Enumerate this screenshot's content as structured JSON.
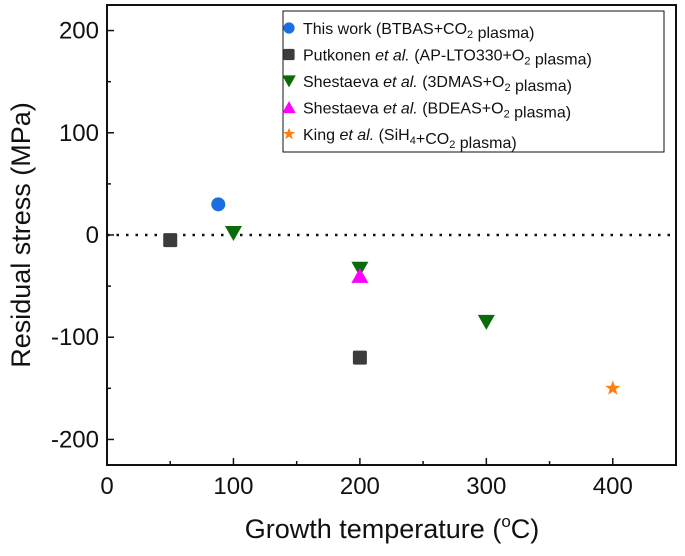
{
  "chart_data": {
    "type": "scatter",
    "xlabel": "Growth temperature (",
    "xlabel_sup": "o",
    "xlabel_tail": "C)",
    "ylabel": "Residual stress (MPa)",
    "xlim": [
      0,
      450
    ],
    "ylim": [
      -225,
      225
    ],
    "xticks": [
      0,
      100,
      200,
      300,
      400
    ],
    "yticks": [
      -200,
      -100,
      0,
      100,
      200
    ],
    "grid": false,
    "reference_line": {
      "y": 0,
      "style": "dotted"
    },
    "legend_position": "top-right",
    "series": [
      {
        "name": "This work (BTBAS+CO2 plasma)",
        "label_parts": [
          [
            "This work (BTBAS+CO",
            ""
          ],
          [
            "2",
            "sub"
          ],
          [
            " plasma)",
            ""
          ]
        ],
        "marker": "circle",
        "color": "#1a6fe0",
        "points": [
          [
            88,
            30
          ]
        ]
      },
      {
        "name": "Putkonen et al. (AP-LTO330+O2 plasma)",
        "label_parts": [
          [
            "Putkonen ",
            ""
          ],
          [
            "et al.",
            "i"
          ],
          [
            " (AP-LTO330+O",
            ""
          ],
          [
            "2",
            "sub"
          ],
          [
            " plasma)",
            ""
          ]
        ],
        "marker": "square",
        "color": "#3c3c3c",
        "points": [
          [
            50,
            -5
          ],
          [
            200,
            -120
          ]
        ]
      },
      {
        "name": "Shestaeva et al. (3DMAS+O2 plasma)",
        "label_parts": [
          [
            "Shestaeva ",
            ""
          ],
          [
            "et al.",
            "i"
          ],
          [
            " (3DMAS+O",
            ""
          ],
          [
            "2",
            "sub"
          ],
          [
            " plasma)",
            ""
          ]
        ],
        "marker": "triangle-down",
        "color": "#0a6b0a",
        "points": [
          [
            100,
            2
          ],
          [
            200,
            -33
          ],
          [
            300,
            -85
          ]
        ]
      },
      {
        "name": "Shestaeva et al. (BDEAS+O2 plasma)",
        "label_parts": [
          [
            "Shestaeva ",
            ""
          ],
          [
            "et al.",
            "i"
          ],
          [
            " (BDEAS+O",
            ""
          ],
          [
            "2",
            "sub"
          ],
          [
            " plasma)",
            ""
          ]
        ],
        "marker": "triangle-up",
        "color": "#ff00ff",
        "points": [
          [
            200,
            -40
          ]
        ]
      },
      {
        "name": "King et al. (SiH4+CO2 plasma)",
        "label_parts": [
          [
            "King ",
            ""
          ],
          [
            "et al.",
            "i"
          ],
          [
            " (SiH",
            ""
          ],
          [
            "4",
            "sub"
          ],
          [
            "+CO",
            ""
          ],
          [
            "2",
            "sub"
          ],
          [
            " plasma)",
            ""
          ]
        ],
        "marker": "star",
        "color": "#ff7f0e",
        "points": [
          [
            400,
            -150
          ]
        ]
      }
    ]
  }
}
